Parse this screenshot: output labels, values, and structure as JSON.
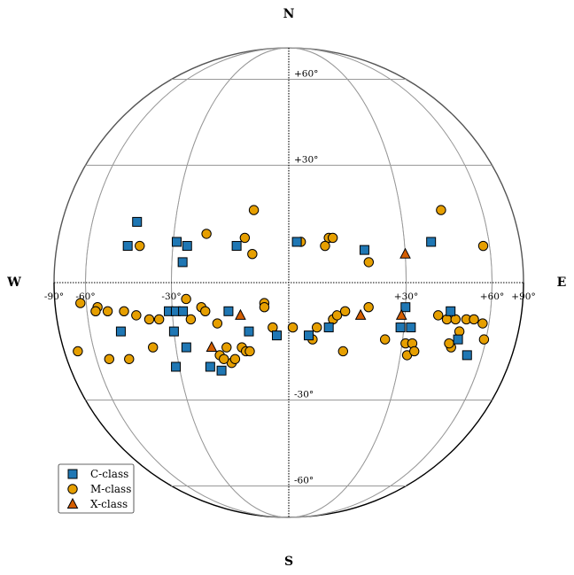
{
  "chart_data": {
    "type": "scatter",
    "projection": "orthographic disk (Stonyhurst heliographic grid)",
    "directions": {
      "north": "N",
      "south": "S",
      "west": "W",
      "east": "E"
    },
    "longitude_ticks": [
      {
        "value": -90,
        "label": "-90°"
      },
      {
        "value": -60,
        "label": "-60°"
      },
      {
        "value": -30,
        "label": "-30°"
      },
      {
        "value": 30,
        "label": "+30°"
      },
      {
        "value": 60,
        "label": "+60°"
      },
      {
        "value": 90,
        "label": "+90°"
      }
    ],
    "latitude_ticks": [
      {
        "value": 60,
        "label": "+60°"
      },
      {
        "value": 30,
        "label": "+30°"
      },
      {
        "value": -30,
        "label": "-30°"
      },
      {
        "value": -60,
        "label": "-60°"
      }
    ],
    "grid": true,
    "legend_position": "bottom-left",
    "colors": {
      "c_class": "#1f77b4",
      "m_class": "#e69f00",
      "x_class": "#d55e00"
    },
    "series": [
      {
        "name": "C-class",
        "marker": "square",
        "points": [
          {
            "lon": -42,
            "lat": 15
          },
          {
            "lon": -44,
            "lat": 9
          },
          {
            "lon": -29,
            "lat": 10
          },
          {
            "lon": -26,
            "lat": 9
          },
          {
            "lon": -27,
            "lat": 5
          },
          {
            "lon": -13,
            "lat": 9
          },
          {
            "lon": 2,
            "lat": 10
          },
          {
            "lon": 19,
            "lat": 8
          },
          {
            "lon": 38,
            "lat": 10
          },
          {
            "lon": -31,
            "lat": -7
          },
          {
            "lon": -29,
            "lat": -7
          },
          {
            "lon": -27,
            "lat": -7
          },
          {
            "lon": -15,
            "lat": -7
          },
          {
            "lon": -47,
            "lat": -12
          },
          {
            "lon": -30,
            "lat": -12
          },
          {
            "lon": -10,
            "lat": -12
          },
          {
            "lon": -3,
            "lat": -13
          },
          {
            "lon": 5,
            "lat": -13
          },
          {
            "lon": 10,
            "lat": -11
          },
          {
            "lon": 30,
            "lat": -6
          },
          {
            "lon": 29,
            "lat": -11
          },
          {
            "lon": 32,
            "lat": -11
          },
          {
            "lon": 44,
            "lat": -7
          },
          {
            "lon": 48,
            "lat": -14
          },
          {
            "lon": 53,
            "lat": -18
          },
          {
            "lon": -27,
            "lat": -16
          },
          {
            "lon": -21,
            "lat": -21
          },
          {
            "lon": -18,
            "lat": -22
          },
          {
            "lon": -31,
            "lat": -21
          }
        ]
      },
      {
        "name": "M-class",
        "marker": "circle",
        "points": [
          {
            "lon": -9,
            "lat": 18
          },
          {
            "lon": -21,
            "lat": 12
          },
          {
            "lon": -11,
            "lat": 11
          },
          {
            "lon": -9,
            "lat": 7
          },
          {
            "lon": -40,
            "lat": 9
          },
          {
            "lon": 3,
            "lat": 10
          },
          {
            "lon": 10,
            "lat": 11
          },
          {
            "lon": 11,
            "lat": 11
          },
          {
            "lon": 9,
            "lat": 9
          },
          {
            "lon": 20,
            "lat": 5
          },
          {
            "lon": 43,
            "lat": 18
          },
          {
            "lon": 57,
            "lat": 9
          },
          {
            "lon": -63,
            "lat": -5
          },
          {
            "lon": -55,
            "lat": -6
          },
          {
            "lon": -56,
            "lat": -7
          },
          {
            "lon": -51,
            "lat": -7
          },
          {
            "lon": -45,
            "lat": -7
          },
          {
            "lon": -41,
            "lat": -8
          },
          {
            "lon": -34,
            "lat": -9
          },
          {
            "lon": -37,
            "lat": -9
          },
          {
            "lon": -26,
            "lat": -4
          },
          {
            "lon": -22,
            "lat": -6
          },
          {
            "lon": -21,
            "lat": -7
          },
          {
            "lon": -25,
            "lat": -9
          },
          {
            "lon": -18,
            "lat": -10
          },
          {
            "lon": -6,
            "lat": -5
          },
          {
            "lon": -6,
            "lat": -6
          },
          {
            "lon": -4,
            "lat": -11
          },
          {
            "lon": 1,
            "lat": -11
          },
          {
            "lon": 7,
            "lat": -11
          },
          {
            "lon": 11,
            "lat": -9
          },
          {
            "lon": 12,
            "lat": -8
          },
          {
            "lon": 14,
            "lat": -7
          },
          {
            "lon": 20,
            "lat": -6
          },
          {
            "lon": 6,
            "lat": -14
          },
          {
            "lon": 14,
            "lat": -17
          },
          {
            "lon": -70,
            "lat": -17
          },
          {
            "lon": -54,
            "lat": -19
          },
          {
            "lon": -46,
            "lat": -19
          },
          {
            "lon": -37,
            "lat": -16
          },
          {
            "lon": -16,
            "lat": -16
          },
          {
            "lon": -18,
            "lat": -18
          },
          {
            "lon": -15,
            "lat": -20
          },
          {
            "lon": -12,
            "lat": -16
          },
          {
            "lon": -11,
            "lat": -17
          },
          {
            "lon": -17,
            "lat": -19
          },
          {
            "lon": -14,
            "lat": -19
          },
          {
            "lon": -10,
            "lat": -17
          },
          {
            "lon": 25,
            "lat": -14
          },
          {
            "lon": 31,
            "lat": -15
          },
          {
            "lon": 33,
            "lat": -15
          },
          {
            "lon": 32,
            "lat": -18
          },
          {
            "lon": 34,
            "lat": -17
          },
          {
            "lon": 40,
            "lat": -8
          },
          {
            "lon": 43,
            "lat": -9
          },
          {
            "lon": 46,
            "lat": -9
          },
          {
            "lon": 48,
            "lat": -12
          },
          {
            "lon": 50,
            "lat": -9
          },
          {
            "lon": 53,
            "lat": -9
          },
          {
            "lon": 57,
            "lat": -10
          },
          {
            "lon": 59,
            "lat": -14
          },
          {
            "lon": 46,
            "lat": -16
          },
          {
            "lon": 45,
            "lat": -15
          }
        ]
      },
      {
        "name": "X-class",
        "marker": "triangle",
        "points": [
          {
            "lon": 30,
            "lat": 7
          },
          {
            "lon": -12,
            "lat": -8
          },
          {
            "lon": 18,
            "lat": -8
          },
          {
            "lon": 29,
            "lat": -8
          },
          {
            "lon": -20,
            "lat": -16
          }
        ]
      }
    ]
  }
}
